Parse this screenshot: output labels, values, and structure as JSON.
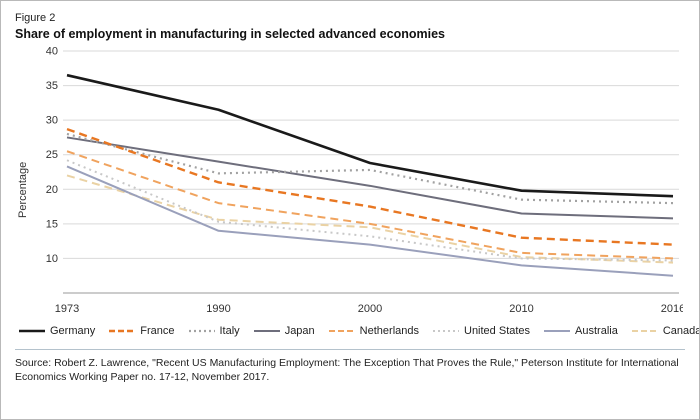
{
  "figure_label": "Figure 2",
  "title": "Share of employment in manufacturing in selected advanced economies",
  "source": "Source: Robert Z. Lawrence, \"Recent US Manufacturing Employment: The Exception That Proves the Rule,\" Peterson Institute for International Economics Working Paper no. 17-12, November 2017.",
  "chart_data": {
    "type": "line",
    "title": "Share of employment in manufacturing in selected advanced economies",
    "xlabel": "",
    "ylabel": "Percentage",
    "categories": [
      "1973",
      "1990",
      "2000",
      "2010",
      "2016"
    ],
    "ylim": [
      5,
      40
    ],
    "yticks": [
      10,
      15,
      20,
      25,
      30,
      35,
      40
    ],
    "grid": "horizontal",
    "legend_position": "bottom",
    "series": [
      {
        "name": "Germany",
        "values": [
          36.5,
          31.5,
          23.8,
          19.8,
          19.0
        ],
        "color": "#1a1a1a",
        "style": "solid",
        "width": 2.6
      },
      {
        "name": "France",
        "values": [
          28.7,
          21.0,
          17.5,
          13.0,
          12.0
        ],
        "color": "#e87722",
        "style": "dashed",
        "width": 2.4
      },
      {
        "name": "Italy",
        "values": [
          28.0,
          22.3,
          22.8,
          18.5,
          18.0
        ],
        "color": "#a2a2a2",
        "style": "dotted",
        "width": 2.2
      },
      {
        "name": "Japan",
        "values": [
          27.5,
          24.0,
          20.5,
          16.5,
          15.8
        ],
        "color": "#6e6e7c",
        "style": "solid",
        "width": 2
      },
      {
        "name": "Netherlands",
        "values": [
          25.5,
          18.0,
          15.0,
          10.8,
          10.0
        ],
        "color": "#f0a35e",
        "style": "dashed",
        "width": 2
      },
      {
        "name": "United States",
        "values": [
          24.2,
          15.3,
          13.2,
          10.0,
          9.7
        ],
        "color": "#c8c8c8",
        "style": "dotted",
        "width": 2
      },
      {
        "name": "Australia",
        "values": [
          23.3,
          14.0,
          12.0,
          9.0,
          7.5
        ],
        "color": "#9aa0bb",
        "style": "solid",
        "width": 2
      },
      {
        "name": "Canada",
        "values": [
          22.0,
          15.6,
          14.5,
          10.2,
          9.4
        ],
        "color": "#ead2a4",
        "style": "dashed",
        "width": 2
      }
    ],
    "colors": {
      "gridline": "#d9d9d9",
      "axis_line": "#9a9a9a",
      "tick_text": "#333333"
    }
  }
}
